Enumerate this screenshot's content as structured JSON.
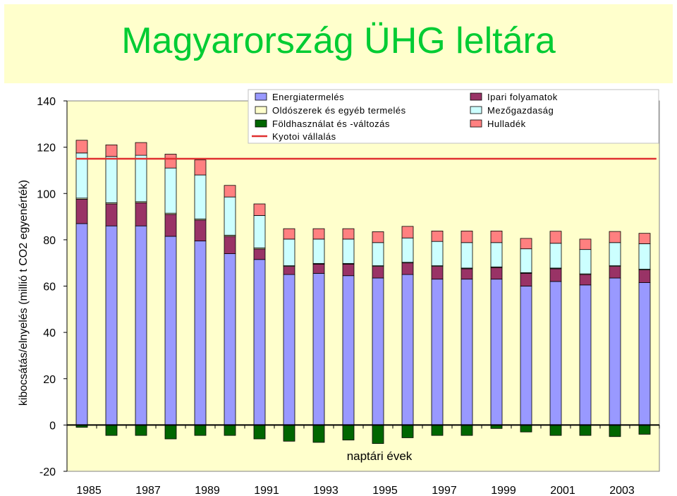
{
  "title": "Magyarország ÜHG leltára",
  "chart_data": {
    "type": "bar",
    "stacked": true,
    "categories": [
      "1985",
      "1986",
      "1987",
      "1988",
      "1989",
      "1990",
      "1991",
      "1992",
      "1993",
      "1994",
      "1995",
      "1996",
      "1997",
      "1998",
      "1999",
      "2000",
      "2001",
      "2002",
      "2003",
      "2004"
    ],
    "x_tick_labels": [
      "1985",
      "1987",
      "1989",
      "1991",
      "1993",
      "1995",
      "1997",
      "1999",
      "2001",
      "2003"
    ],
    "xlabel": "naptári évek",
    "ylabel": "kibocsátás/elnyelés (millió t CO2 egyenérték)",
    "ylim": [
      -20,
      140
    ],
    "yticks": [
      -20,
      0,
      20,
      40,
      60,
      80,
      100,
      120,
      140
    ],
    "grid": false,
    "legend_position": "top",
    "series": [
      {
        "name": "Energiatermelés",
        "color": "#9999ff",
        "values": [
          87,
          86,
          86,
          81.5,
          79.5,
          74,
          71.5,
          65,
          65.5,
          64.5,
          63.5,
          65,
          63,
          63,
          63,
          60,
          62,
          60.5,
          63.5,
          61.5
        ]
      },
      {
        "name": "Ipari folyamatok",
        "color": "#993366",
        "values": [
          10.5,
          9.5,
          10,
          9.5,
          9,
          7.5,
          4.5,
          3.5,
          4,
          5,
          5,
          5,
          5.5,
          4.5,
          5,
          5.5,
          5.5,
          4.5,
          5,
          5.5
        ]
      },
      {
        "name": "Oldószerek és egyéb termelés",
        "color": "#ffffcc",
        "values": [
          0.5,
          0.5,
          0.5,
          0.5,
          0.5,
          0.5,
          0.5,
          0.3,
          0.3,
          0.3,
          0.3,
          0.3,
          0.3,
          0.3,
          0.3,
          0.3,
          0.3,
          0.3,
          0.3,
          0.3
        ]
      },
      {
        "name": "Mezőgazdaság",
        "color": "#ccffff",
        "values": [
          19.5,
          20,
          20,
          19.5,
          19,
          16.5,
          14,
          11.5,
          10.5,
          10.5,
          10,
          10.5,
          10.5,
          11,
          10.5,
          10.3,
          10.7,
          10.5,
          10,
          11
        ]
      },
      {
        "name": "Hulladék",
        "color": "#ff8080",
        "values": [
          5.5,
          5,
          5.5,
          6,
          6.5,
          5,
          5,
          4.5,
          4.5,
          4.5,
          4.7,
          5,
          4.5,
          5,
          5,
          4.5,
          5.2,
          4.5,
          4.8,
          4.5
        ]
      },
      {
        "name": "Földhasználat és -változás",
        "color": "#006600",
        "values": [
          -1,
          -4.5,
          -4.5,
          -6,
          -4.5,
          -4.5,
          -6,
          -7,
          -7.5,
          -6.5,
          -8,
          -5.5,
          -4.5,
          -4.5,
          -1.5,
          -3,
          -4.5,
          -4.5,
          -5,
          -4
        ]
      }
    ],
    "reference_line": {
      "name": "Kyotoi vállalás",
      "color": "#e03030",
      "value": 115
    }
  }
}
